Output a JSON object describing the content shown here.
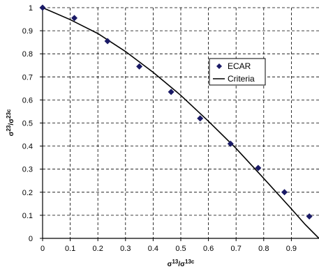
{
  "chart_data": {
    "type": "scatter",
    "xlabel": {
      "base": "σ",
      "sup1": "13",
      "mid": "/σ",
      "sup2": "13c"
    },
    "ylabel": {
      "base": "σ",
      "sup1": "23",
      "mid": "/σ",
      "sup2": "23c"
    },
    "xlim": [
      0,
      1
    ],
    "ylim": [
      0,
      1
    ],
    "x_ticks": [
      "0",
      "0.1",
      "0.2",
      "0.3",
      "0.4",
      "0.5",
      "0.6",
      "0.7",
      "0.8",
      "0.9"
    ],
    "y_ticks": [
      "0",
      "0.1",
      "0.2",
      "0.3",
      "0.4",
      "0.5",
      "0.6",
      "0.7",
      "0.8",
      "0.9",
      "1"
    ],
    "grid": "dashed",
    "legend_position": "right",
    "series": [
      {
        "name": "ECAR",
        "kind": "markers",
        "marker": "diamond",
        "color": "#1a1a66",
        "x": [
          0.0,
          0.115,
          0.235,
          0.35,
          0.465,
          0.57,
          0.68,
          0.78,
          0.875,
          0.965
        ],
        "y": [
          1.0,
          0.955,
          0.855,
          0.745,
          0.635,
          0.52,
          0.41,
          0.305,
          0.2,
          0.095
        ]
      },
      {
        "name": "Criteria",
        "kind": "line",
        "color": "#000000",
        "x": [
          0.0,
          0.1,
          0.2,
          0.3,
          0.4,
          0.5,
          0.6,
          0.7,
          0.8,
          0.9,
          0.95,
          1.0
        ],
        "y": [
          1.0,
          0.948,
          0.888,
          0.81,
          0.72,
          0.62,
          0.508,
          0.39,
          0.26,
          0.128,
          0.06,
          0.0
        ]
      }
    ]
  }
}
